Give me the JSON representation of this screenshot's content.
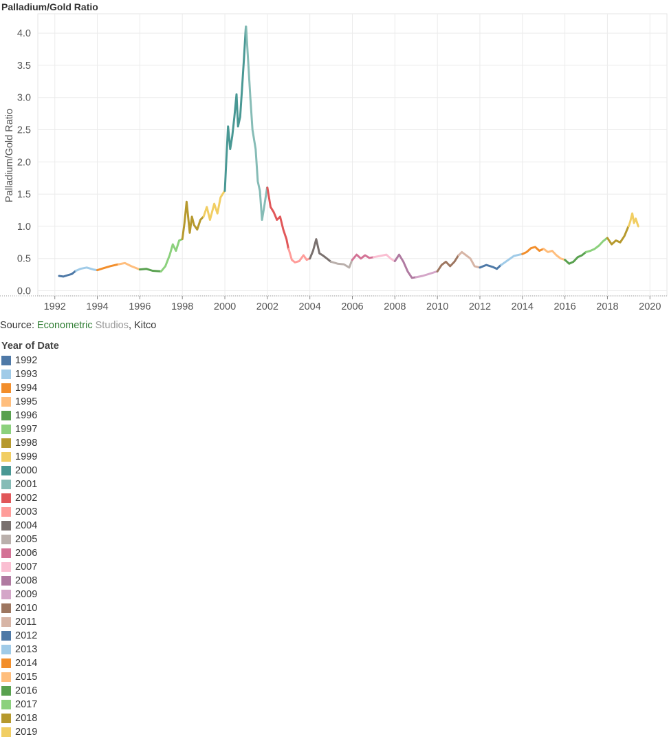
{
  "title": "Palladium/Gold Ratio",
  "source": {
    "prefix": "Source: ",
    "econ": "Econometric",
    "studios": " Studios",
    "sep": ", ",
    "kitco": "Kitco"
  },
  "legend": {
    "title": "Year of Date",
    "items": [
      {
        "label": "1992",
        "color": "#4e79a7"
      },
      {
        "label": "1993",
        "color": "#a0cbe8"
      },
      {
        "label": "1994",
        "color": "#f28e2b"
      },
      {
        "label": "1995",
        "color": "#ffbe7d"
      },
      {
        "label": "1996",
        "color": "#59a14f"
      },
      {
        "label": "1997",
        "color": "#8cd17d"
      },
      {
        "label": "1998",
        "color": "#b6992d"
      },
      {
        "label": "1999",
        "color": "#f1ce63"
      },
      {
        "label": "2000",
        "color": "#499894"
      },
      {
        "label": "2001",
        "color": "#86bcb6"
      },
      {
        "label": "2002",
        "color": "#e15759"
      },
      {
        "label": "2003",
        "color": "#ff9d9a"
      },
      {
        "label": "2004",
        "color": "#79706e"
      },
      {
        "label": "2005",
        "color": "#bab0ac"
      },
      {
        "label": "2006",
        "color": "#d37295"
      },
      {
        "label": "2007",
        "color": "#fabfd2"
      },
      {
        "label": "2008",
        "color": "#b07aa1"
      },
      {
        "label": "2009",
        "color": "#d4a6c8"
      },
      {
        "label": "2010",
        "color": "#9d7660"
      },
      {
        "label": "2011",
        "color": "#d7b5a6"
      },
      {
        "label": "2012",
        "color": "#4e79a7"
      },
      {
        "label": "2013",
        "color": "#a0cbe8"
      },
      {
        "label": "2014",
        "color": "#f28e2b"
      },
      {
        "label": "2015",
        "color": "#ffbe7d"
      },
      {
        "label": "2016",
        "color": "#59a14f"
      },
      {
        "label": "2017",
        "color": "#8cd17d"
      },
      {
        "label": "2018",
        "color": "#b6992d"
      },
      {
        "label": "2019",
        "color": "#f1ce63"
      }
    ]
  },
  "chart_data": {
    "type": "line",
    "title": "Palladium/Gold Ratio",
    "xlabel": "",
    "ylabel": "Palladium/Gold Ratio",
    "xlim": [
      1991.2,
      2020.8
    ],
    "ylim": [
      -0.08,
      4.3
    ],
    "xticks": [
      1992,
      1994,
      1996,
      1998,
      2000,
      2002,
      2004,
      2006,
      2008,
      2010,
      2012,
      2014,
      2016,
      2018,
      2020
    ],
    "yticks": [
      0.0,
      0.5,
      1.0,
      1.5,
      2.0,
      2.5,
      3.0,
      3.5,
      4.0
    ],
    "ytick_labels": [
      "0.0",
      "0.5",
      "1.0",
      "1.5",
      "2.0",
      "2.5",
      "3.0",
      "3.5",
      "4.0"
    ],
    "grid": true,
    "legend_position": "bottom-left",
    "series": [
      {
        "name": "1992",
        "x": [
          1992.2,
          1992.4,
          1992.6,
          1992.8,
          1992.99
        ],
        "y": [
          0.23,
          0.22,
          0.24,
          0.26,
          0.31
        ]
      },
      {
        "name": "1993",
        "x": [
          1993.0,
          1993.2,
          1993.5,
          1993.8,
          1993.99
        ],
        "y": [
          0.31,
          0.34,
          0.36,
          0.33,
          0.32
        ]
      },
      {
        "name": "1994",
        "x": [
          1994.0,
          1994.3,
          1994.6,
          1994.99
        ],
        "y": [
          0.32,
          0.35,
          0.38,
          0.41
        ]
      },
      {
        "name": "1995",
        "x": [
          1995.0,
          1995.3,
          1995.6,
          1995.99
        ],
        "y": [
          0.41,
          0.43,
          0.38,
          0.33
        ]
      },
      {
        "name": "1996",
        "x": [
          1996.0,
          1996.3,
          1996.6,
          1996.99
        ],
        "y": [
          0.33,
          0.34,
          0.31,
          0.3
        ]
      },
      {
        "name": "1997",
        "x": [
          1997.0,
          1997.2,
          1997.4,
          1997.55,
          1997.7,
          1997.85,
          1997.99
        ],
        "y": [
          0.3,
          0.38,
          0.55,
          0.72,
          0.62,
          0.78,
          0.8
        ]
      },
      {
        "name": "1998",
        "x": [
          1998.0,
          1998.1,
          1998.2,
          1998.35,
          1998.45,
          1998.55,
          1998.7,
          1998.85,
          1998.99
        ],
        "y": [
          0.8,
          1.05,
          1.38,
          0.9,
          1.15,
          1.02,
          0.95,
          1.1,
          1.15
        ]
      },
      {
        "name": "1999",
        "x": [
          1999.0,
          1999.15,
          1999.3,
          1999.5,
          1999.65,
          1999.8,
          1999.99
        ],
        "y": [
          1.15,
          1.3,
          1.1,
          1.35,
          1.2,
          1.45,
          1.55
        ]
      },
      {
        "name": "2000",
        "x": [
          2000.0,
          2000.08,
          2000.15,
          2000.25,
          2000.35,
          2000.45,
          2000.55,
          2000.62,
          2000.72,
          2000.82,
          2000.9,
          2000.99
        ],
        "y": [
          1.55,
          2.1,
          2.55,
          2.2,
          2.4,
          2.7,
          3.05,
          2.55,
          2.7,
          3.2,
          3.6,
          4.1
        ]
      },
      {
        "name": "2001",
        "x": [
          2001.0,
          2001.1,
          2001.2,
          2001.3,
          2001.45,
          2001.55,
          2001.65,
          2001.75,
          2001.85,
          2001.99
        ],
        "y": [
          4.1,
          3.55,
          3.0,
          2.5,
          2.2,
          1.7,
          1.55,
          1.1,
          1.3,
          1.6
        ]
      },
      {
        "name": "2002",
        "x": [
          2002.0,
          2002.15,
          2002.3,
          2002.45,
          2002.6,
          2002.75,
          2002.9,
          2002.99
        ],
        "y": [
          1.6,
          1.3,
          1.22,
          1.1,
          1.15,
          0.95,
          0.8,
          0.65
        ]
      },
      {
        "name": "2003",
        "x": [
          2003.0,
          2003.15,
          2003.3,
          2003.5,
          2003.7,
          2003.85,
          2003.99
        ],
        "y": [
          0.65,
          0.48,
          0.44,
          0.46,
          0.55,
          0.48,
          0.5
        ]
      },
      {
        "name": "2004",
        "x": [
          2004.0,
          2004.15,
          2004.3,
          2004.45,
          2004.6,
          2004.8,
          2004.99
        ],
        "y": [
          0.5,
          0.62,
          0.8,
          0.58,
          0.55,
          0.5,
          0.45
        ]
      },
      {
        "name": "2005",
        "x": [
          2005.0,
          2005.3,
          2005.6,
          2005.85,
          2005.99
        ],
        "y": [
          0.45,
          0.42,
          0.41,
          0.36,
          0.48
        ]
      },
      {
        "name": "2006",
        "x": [
          2006.0,
          2006.2,
          2006.4,
          2006.6,
          2006.8,
          2006.99
        ],
        "y": [
          0.48,
          0.56,
          0.5,
          0.55,
          0.51,
          0.52
        ]
      },
      {
        "name": "2007",
        "x": [
          2007.0,
          2007.3,
          2007.6,
          2007.8,
          2007.99
        ],
        "y": [
          0.52,
          0.54,
          0.56,
          0.5,
          0.46
        ]
      },
      {
        "name": "2008",
        "x": [
          2008.0,
          2008.2,
          2008.4,
          2008.6,
          2008.8,
          2008.99
        ],
        "y": [
          0.46,
          0.56,
          0.45,
          0.3,
          0.2,
          0.21
        ]
      },
      {
        "name": "2009",
        "x": [
          2009.0,
          2009.3,
          2009.6,
          2009.99
        ],
        "y": [
          0.21,
          0.23,
          0.26,
          0.3
        ]
      },
      {
        "name": "2010",
        "x": [
          2010.0,
          2010.2,
          2010.4,
          2010.6,
          2010.8,
          2010.99
        ],
        "y": [
          0.3,
          0.4,
          0.45,
          0.38,
          0.45,
          0.55
        ]
      },
      {
        "name": "2011",
        "x": [
          2011.0,
          2011.15,
          2011.35,
          2011.55,
          2011.75,
          2011.99
        ],
        "y": [
          0.55,
          0.6,
          0.55,
          0.5,
          0.38,
          0.36
        ]
      },
      {
        "name": "2012",
        "x": [
          2012.0,
          2012.3,
          2012.6,
          2012.8,
          2012.99
        ],
        "y": [
          0.36,
          0.4,
          0.37,
          0.34,
          0.4
        ]
      },
      {
        "name": "2013",
        "x": [
          2013.0,
          2013.3,
          2013.6,
          2013.99
        ],
        "y": [
          0.4,
          0.47,
          0.54,
          0.57
        ]
      },
      {
        "name": "2014",
        "x": [
          2014.0,
          2014.2,
          2014.4,
          2014.6,
          2014.8,
          2014.99
        ],
        "y": [
          0.57,
          0.6,
          0.66,
          0.68,
          0.62,
          0.65
        ]
      },
      {
        "name": "2015",
        "x": [
          2015.0,
          2015.2,
          2015.4,
          2015.6,
          2015.8,
          2015.99
        ],
        "y": [
          0.65,
          0.6,
          0.62,
          0.55,
          0.5,
          0.48
        ]
      },
      {
        "name": "2016",
        "x": [
          2016.0,
          2016.2,
          2016.4,
          2016.6,
          2016.8,
          2016.99
        ],
        "y": [
          0.48,
          0.42,
          0.45,
          0.52,
          0.55,
          0.6
        ]
      },
      {
        "name": "2017",
        "x": [
          2017.0,
          2017.2,
          2017.4,
          2017.6,
          2017.8,
          2017.99
        ],
        "y": [
          0.6,
          0.62,
          0.65,
          0.7,
          0.77,
          0.82
        ]
      },
      {
        "name": "2018",
        "x": [
          2018.0,
          2018.2,
          2018.4,
          2018.6,
          2018.8,
          2018.99
        ],
        "y": [
          0.82,
          0.72,
          0.78,
          0.75,
          0.85,
          1.0
        ]
      },
      {
        "name": "2019",
        "x": [
          2019.0,
          2019.08,
          2019.17,
          2019.25,
          2019.33,
          2019.45
        ],
        "y": [
          1.0,
          1.08,
          1.2,
          1.05,
          1.12,
          1.0
        ]
      }
    ]
  }
}
